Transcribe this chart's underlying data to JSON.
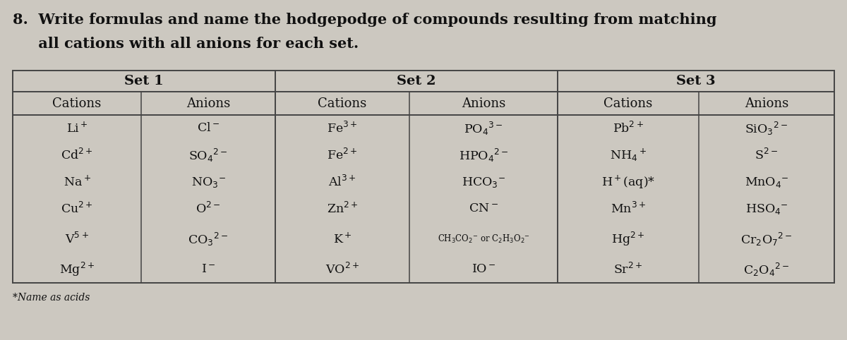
{
  "title_line1": "8.  Write formulas and name the hodgepodge of compounds resulting from matching",
  "title_line2": "     all cations with all anions for each set.",
  "bg_color": "#ccc8c0",
  "set1_label": "Set 1",
  "set2_label": "Set 2",
  "set3_label": "Set 3",
  "col_headers": [
    "Cations",
    "Anions",
    "Cations",
    "Anions",
    "Cations",
    "Anions"
  ],
  "set1_cations": [
    "Li$^+$",
    "Cd$^{2+}$",
    "Na$^+$",
    "Cu$^{2+}$",
    "V$^{5+}$",
    "Mg$^{2+}$"
  ],
  "set1_anions": [
    "Cl$^-$",
    "SO$_4$$^{2-}$",
    "NO$_3$$^{-}$",
    "O$^{2-}$",
    "CO$_3$$^{2-}$",
    "I$^-$"
  ],
  "set2_cations": [
    "Fe$^{3+}$",
    "Fe$^{2+}$",
    "Al$^{3+}$",
    "Zn$^{2+}$",
    "K$^+$",
    "VO$^{2+}$"
  ],
  "set2_anions": [
    "PO$_4$$^{3-}$",
    "HPO$_4$$^{2-}$",
    "HCO$_3$$^{-}$",
    "CN$^-$",
    "CH$_3$CO$_2$$^{-}$ or C$_2$H$_3$O$_2$$^{-}$",
    "IO$^-$"
  ],
  "set3_cations": [
    "Pb$^{2+}$",
    "NH$_4$$^+$",
    "H$^+$(aq)*",
    "Mn$^{3+}$",
    "Hg$^{2+}$",
    "Sr$^{2+}$"
  ],
  "set3_anions": [
    "SiO$_3$$^{2-}$",
    "S$^{2-}$",
    "MnO$_4$$^{-}$",
    "HSO$_4$$^{-}$",
    "Cr$_2$O$_7$$^{2-}$",
    "C$_2$O$_4$$^{2-}$"
  ],
  "footnote": "*Name as acids",
  "text_color": "#111111",
  "line_color": "#444444",
  "font_size_title": 15,
  "font_size_set": 14,
  "font_size_header": 13,
  "font_size_data": 12.5,
  "font_size_long": 8.5
}
